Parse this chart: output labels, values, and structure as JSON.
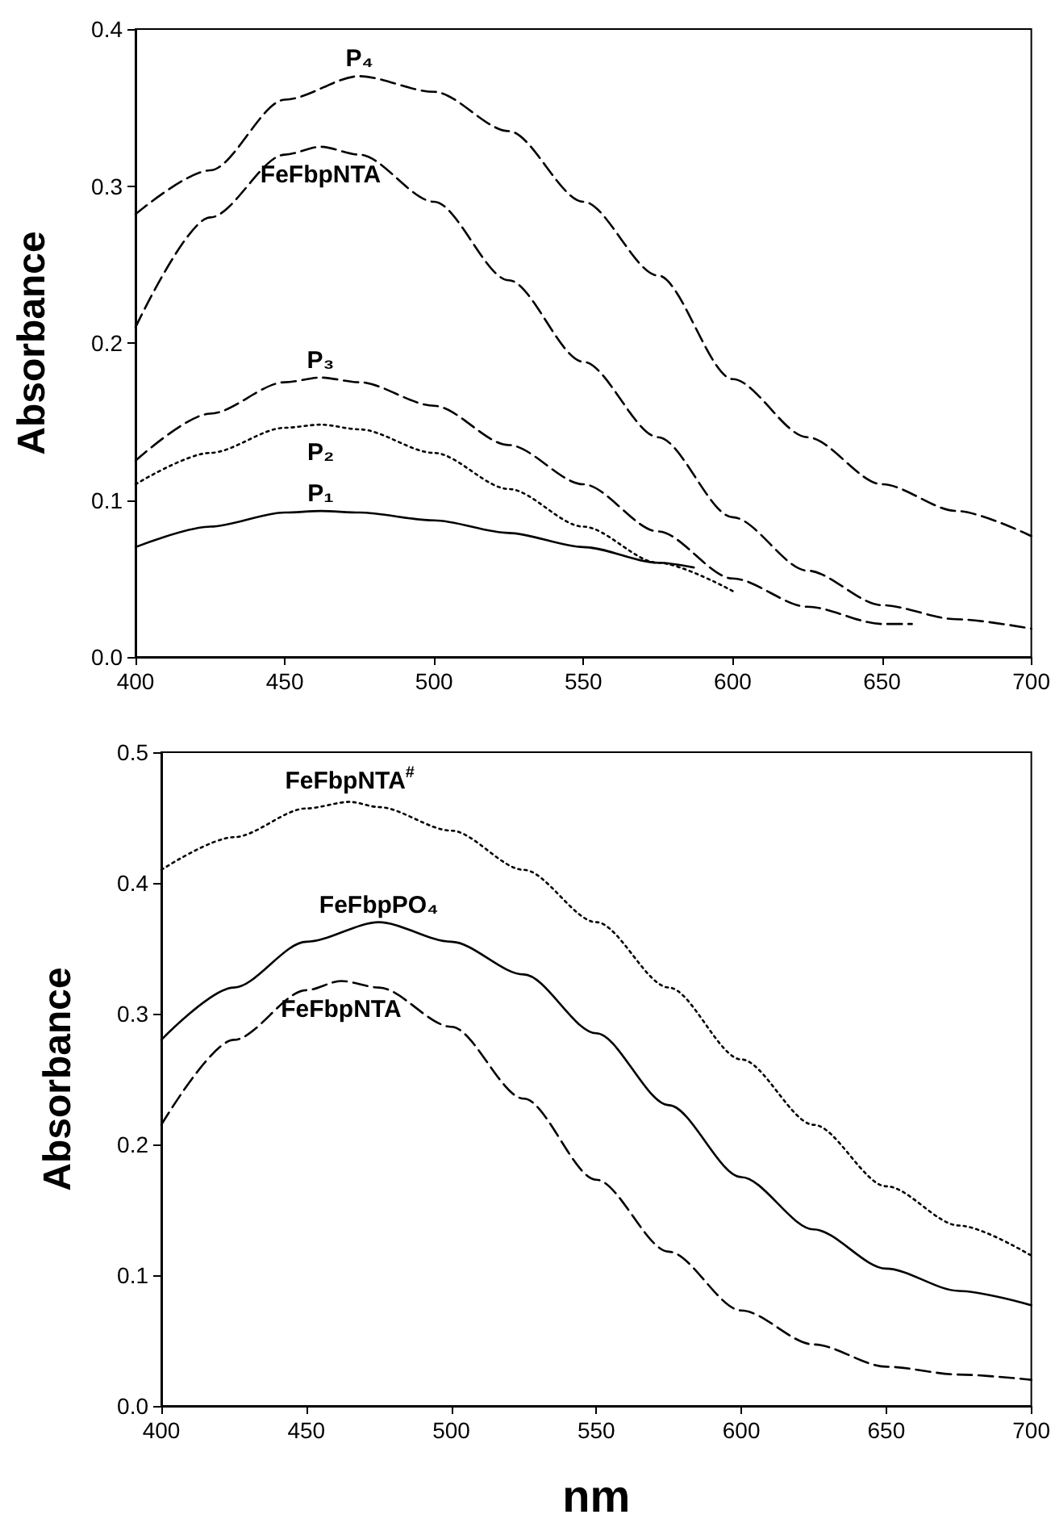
{
  "chart_data": [
    {
      "type": "line",
      "ylabel": "Absorbance",
      "xlim": [
        400,
        700
      ],
      "xticks": [
        400,
        450,
        500,
        550,
        600,
        650,
        700
      ],
      "ylim": [
        0,
        0.4
      ],
      "yticks": [
        {
          "value": 0,
          "label": "0.0"
        },
        {
          "value": 0.1,
          "label": "0.1"
        },
        {
          "value": 0.2,
          "label": "0.2"
        },
        {
          "value": 0.3,
          "label": "0.3"
        },
        {
          "value": 0.4,
          "label": "0.4"
        }
      ],
      "grid": false,
      "legend": false,
      "marker": "none",
      "series": [
        {
          "name": "P₄",
          "color": "#000000",
          "line_style": "dashed",
          "x": [
            400,
            425,
            450,
            475,
            500,
            525,
            550,
            575,
            600,
            625,
            650,
            675,
            700
          ],
          "values": [
            0.282,
            0.31,
            0.355,
            0.37,
            0.36,
            0.335,
            0.29,
            0.243,
            0.177,
            0.14,
            0.11,
            0.093,
            0.077
          ]
        },
        {
          "name": "FeFbpNTA",
          "color": "#000000",
          "line_style": "dashed",
          "x": [
            400,
            425,
            450,
            462,
            475,
            500,
            525,
            550,
            575,
            600,
            625,
            650,
            675,
            700
          ],
          "values": [
            0.21,
            0.28,
            0.32,
            0.325,
            0.32,
            0.29,
            0.24,
            0.188,
            0.14,
            0.089,
            0.055,
            0.033,
            0.024,
            0.018
          ]
        },
        {
          "name": "P₃",
          "color": "#000000",
          "line_style": "dashed",
          "x": [
            400,
            425,
            450,
            462,
            475,
            500,
            525,
            550,
            575,
            600,
            625,
            650,
            660
          ],
          "values": [
            0.125,
            0.155,
            0.175,
            0.178,
            0.175,
            0.16,
            0.135,
            0.11,
            0.08,
            0.05,
            0.032,
            0.021,
            0.021
          ]
        },
        {
          "name": "P₂",
          "color": "#000000",
          "line_style": "dotted",
          "x": [
            400,
            425,
            450,
            462,
            475,
            500,
            525,
            550,
            575,
            600
          ],
          "values": [
            0.11,
            0.13,
            0.146,
            0.148,
            0.145,
            0.13,
            0.107,
            0.083,
            0.06,
            0.042
          ]
        },
        {
          "name": "P₁",
          "color": "#000000",
          "line_style": "solid",
          "x": [
            400,
            425,
            450,
            462,
            475,
            500,
            525,
            550,
            575,
            587
          ],
          "values": [
            0.07,
            0.083,
            0.092,
            0.093,
            0.092,
            0.087,
            0.079,
            0.07,
            0.06,
            0.057
          ]
        }
      ]
    },
    {
      "type": "line",
      "xlabel": "nm",
      "ylabel": "Absorbance",
      "xlim": [
        400,
        700
      ],
      "xticks": [
        400,
        450,
        500,
        550,
        600,
        650,
        700
      ],
      "ylim": [
        0,
        0.5
      ],
      "yticks": [
        {
          "value": 0,
          "label": "0.0"
        },
        {
          "value": 0.1,
          "label": "0.1"
        },
        {
          "value": 0.2,
          "label": "0.2"
        },
        {
          "value": 0.3,
          "label": "0.3"
        },
        {
          "value": 0.4,
          "label": "0.4"
        },
        {
          "value": 0.5,
          "label": "0.5"
        }
      ],
      "grid": false,
      "legend": false,
      "marker": "none",
      "series": [
        {
          "name": "FeFbpNTA$^{#}$",
          "color": "#000000",
          "line_style": "dotted",
          "x": [
            400,
            425,
            450,
            465,
            475,
            500,
            525,
            550,
            575,
            600,
            625,
            650,
            675,
            700
          ],
          "values": [
            0.41,
            0.435,
            0.457,
            0.462,
            0.458,
            0.44,
            0.41,
            0.37,
            0.32,
            0.265,
            0.215,
            0.168,
            0.138,
            0.115
          ]
        },
        {
          "name": "FeFbpPO₄",
          "color": "#000000",
          "line_style": "solid",
          "x": [
            400,
            425,
            450,
            475,
            500,
            525,
            550,
            575,
            600,
            625,
            650,
            675,
            700
          ],
          "values": [
            0.28,
            0.32,
            0.355,
            0.37,
            0.355,
            0.33,
            0.285,
            0.23,
            0.175,
            0.135,
            0.105,
            0.088,
            0.077
          ]
        },
        {
          "name": "FeFbpNTA",
          "color": "#000000",
          "line_style": "dashed",
          "x": [
            400,
            425,
            450,
            462,
            475,
            500,
            525,
            550,
            575,
            600,
            625,
            650,
            675,
            700
          ],
          "values": [
            0.215,
            0.28,
            0.318,
            0.325,
            0.32,
            0.29,
            0.235,
            0.173,
            0.118,
            0.073,
            0.047,
            0.03,
            0.024,
            0.02
          ]
        }
      ]
    }
  ]
}
